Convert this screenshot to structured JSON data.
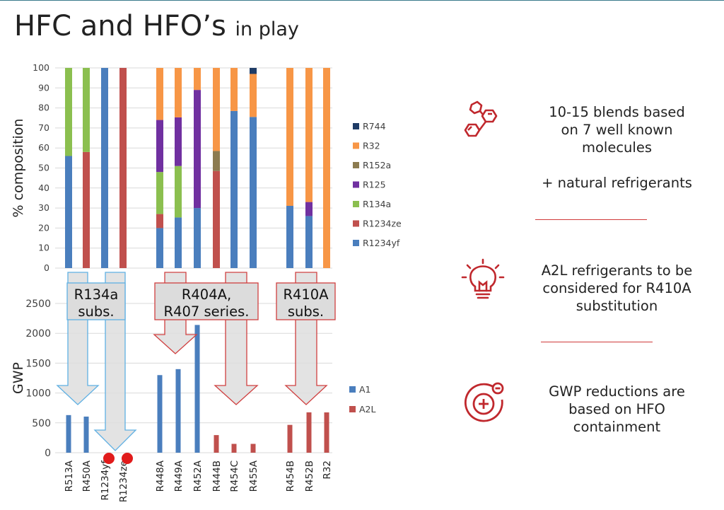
{
  "title": {
    "main": "HFC and HFO’s",
    "sub": "in play"
  },
  "colors": {
    "R1234yf": "#4a7ebd",
    "R1234ze": "#c0504d",
    "R134a": "#8bbf4f",
    "R125": "#7030a0",
    "R152a": "#8c7b50",
    "R32": "#f79646",
    "R744": "#1f3c66",
    "A1": "#4a7ebd",
    "A2L": "#c0504d",
    "accent": "#c0282d",
    "box_blue": "#5fb0e3",
    "box_red": "#d04040"
  },
  "chart_data": [
    {
      "type": "bar",
      "stacked": true,
      "ylabel": "% composition",
      "ylim": [
        0,
        100
      ],
      "yticks": [
        0,
        10,
        20,
        30,
        40,
        50,
        60,
        70,
        80,
        90,
        100
      ],
      "grid": true,
      "legend_position": "right",
      "categories": [
        "R513A",
        "R450A",
        "R1234yf",
        "R1234ze",
        "R448A",
        "R449A",
        "R452A",
        "R444B",
        "R454C",
        "R455A",
        "R454B",
        "R452B",
        "R32"
      ],
      "series": [
        {
          "name": "R1234yf",
          "values": [
            56,
            0,
            100,
            0,
            20,
            25.3,
            30,
            0,
            78.5,
            75.5,
            31.1,
            26,
            0
          ]
        },
        {
          "name": "R1234ze",
          "values": [
            0,
            58,
            0,
            100,
            7,
            0,
            0,
            48.5,
            0,
            0,
            0,
            0,
            0
          ]
        },
        {
          "name": "R134a",
          "values": [
            44,
            42,
            0,
            0,
            21,
            25.7,
            0,
            0,
            0,
            0,
            0,
            0,
            0
          ]
        },
        {
          "name": "R125",
          "values": [
            0,
            0,
            0,
            0,
            26,
            24.3,
            59,
            0,
            0,
            0,
            0,
            7,
            0
          ]
        },
        {
          "name": "R152a",
          "values": [
            0,
            0,
            0,
            0,
            0,
            0,
            0,
            10,
            0,
            0,
            0,
            0,
            0
          ]
        },
        {
          "name": "R32",
          "values": [
            0,
            0,
            0,
            0,
            26,
            24.7,
            11,
            41.5,
            21.5,
            21.5,
            68.9,
            67,
            100
          ]
        },
        {
          "name": "R744",
          "values": [
            0,
            0,
            0,
            0,
            0,
            0,
            0,
            0,
            0,
            3,
            0,
            0,
            0
          ]
        }
      ]
    },
    {
      "type": "bar",
      "ylabel": "GWP",
      "ylim": [
        0,
        2500
      ],
      "yticks": [
        0,
        500,
        1000,
        1500,
        2000,
        2500
      ],
      "grid": true,
      "legend_position": "right",
      "categories": [
        "R513A",
        "R450A",
        "R1234yf",
        "R1234ze",
        "R448A",
        "R449A",
        "R452A",
        "R444B",
        "R454C",
        "R455A",
        "R454B",
        "R452B",
        "R32"
      ],
      "series": [
        {
          "name": "A1",
          "values": [
            630,
            605,
            0,
            0,
            1300,
            1400,
            2140,
            0,
            0,
            0,
            0,
            0,
            0
          ]
        },
        {
          "name": "A2L",
          "values": [
            0,
            0,
            0,
            0,
            0,
            0,
            0,
            295,
            148,
            148,
            466,
            676,
            675
          ]
        }
      ]
    }
  ],
  "group_labels": [
    "R134a subs.",
    "R404A, R407 series.",
    "R410A subs."
  ],
  "info_panels": [
    {
      "icon": "molecule-icon",
      "lines": [
        "10-15 blends based",
        "on 7 well known",
        "molecules",
        "",
        "+ natural refrigerants"
      ]
    },
    {
      "icon": "lightbulb-icon",
      "lines": [
        "A2L refrigerants to be",
        "considered for R410A",
        "substitution"
      ]
    },
    {
      "icon": "gwp-reduction-icon",
      "lines": [
        "GWP reductions are",
        "based on HFO",
        "containment"
      ]
    }
  ]
}
